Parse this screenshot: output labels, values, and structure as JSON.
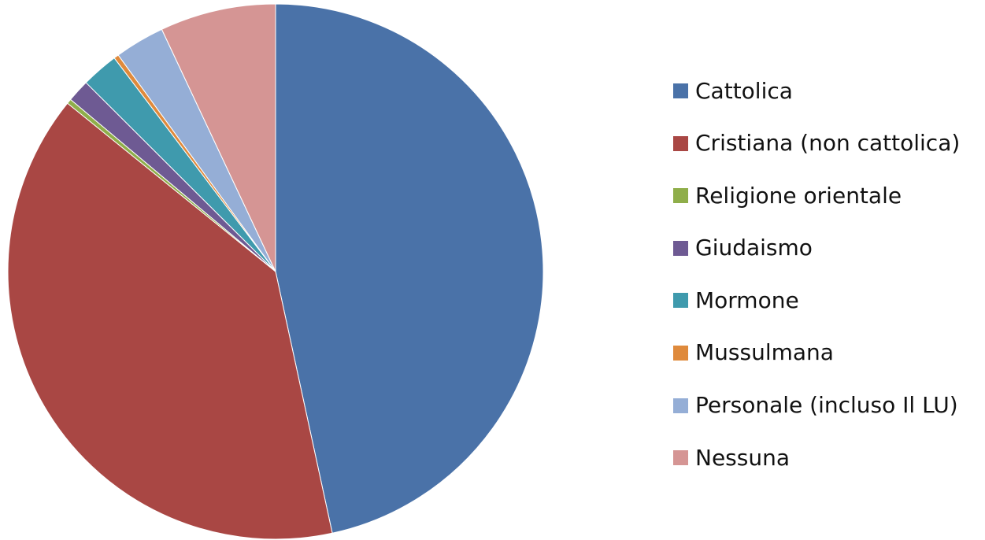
{
  "chart_data": {
    "type": "pie",
    "title": "",
    "legend_position": "right",
    "start_angle_deg": 0,
    "direction": "clockwise",
    "series": [
      {
        "values": [
          48.0,
          40.4,
          0.3,
          1.4,
          2.3,
          0.3,
          3.1,
          7.2
        ],
        "colors": [
          "#4A72A8",
          "#A94744",
          "#8FAE4A",
          "#6E5A93",
          "#3F9AAD",
          "#DF8A3C",
          "#95AED6",
          "#D59594"
        ]
      }
    ],
    "categories": [
      "Cattolica",
      "Cristiana (non cattolica)",
      "Religione orientale",
      "Giudaismo",
      "Mormone",
      "Mussulmana",
      "Personale (incluso Il LU)",
      "Nessuna"
    ]
  }
}
